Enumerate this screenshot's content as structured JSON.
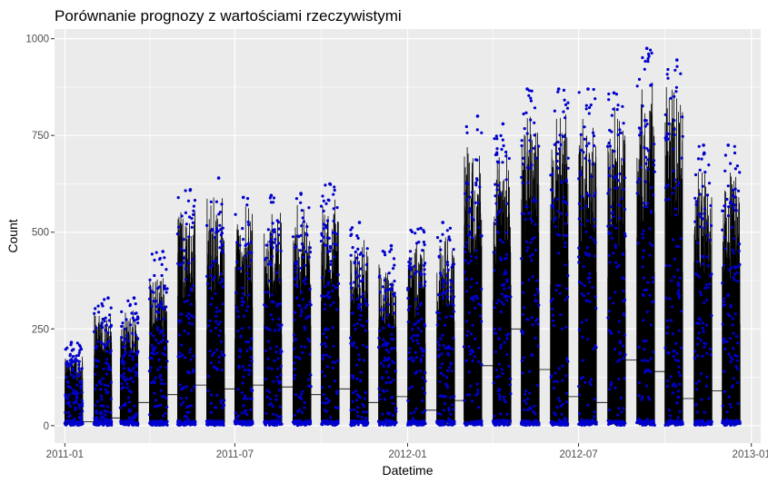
{
  "chart_data": {
    "type": "line",
    "title": "Porównanie prognozy z wartościami rzeczywistymi",
    "xlabel": "Datetime",
    "ylabel": "Count",
    "x_range": [
      "2010-12-21",
      "2013-01-11"
    ],
    "ylim": [
      -45,
      1025
    ],
    "x_ticks": [
      {
        "date": "2011-01-01",
        "label": "2011-01"
      },
      {
        "date": "2011-07-01",
        "label": "2011-07"
      },
      {
        "date": "2012-01-01",
        "label": "2012-01"
      },
      {
        "date": "2012-07-01",
        "label": "2012-07"
      },
      {
        "date": "2013-01-01",
        "label": "2013-01"
      }
    ],
    "y_ticks": [
      0,
      250,
      500,
      750,
      1000
    ],
    "grid": true,
    "background": "#ebebeb",
    "series": [
      {
        "kind": "line",
        "color": "#000000",
        "monthly_blocks": [
          {
            "start": "2011-01-01",
            "end": "2011-01-19",
            "min": 1,
            "peak": 185,
            "bridge": 45
          },
          {
            "start": "2011-02-01",
            "end": "2011-02-19",
            "min": 1,
            "peak": 300,
            "bridge": 10
          },
          {
            "start": "2011-03-01",
            "end": "2011-03-19",
            "min": 1,
            "peak": 300,
            "bridge": 20
          },
          {
            "start": "2011-04-01",
            "end": "2011-04-19",
            "min": 1,
            "peak": 410,
            "bridge": 60
          },
          {
            "start": "2011-05-01",
            "end": "2011-05-19",
            "min": 1,
            "peak": 580,
            "bridge": 80
          },
          {
            "start": "2011-06-01",
            "end": "2011-06-19",
            "min": 1,
            "peak": 590,
            "bridge": 105
          },
          {
            "start": "2011-07-01",
            "end": "2011-07-19",
            "min": 1,
            "peak": 570,
            "bridge": 95
          },
          {
            "start": "2011-08-01",
            "end": "2011-08-19",
            "min": 1,
            "peak": 580,
            "bridge": 105
          },
          {
            "start": "2011-09-01",
            "end": "2011-09-19",
            "min": 1,
            "peak": 570,
            "bridge": 100
          },
          {
            "start": "2011-10-01",
            "end": "2011-10-19",
            "min": 1,
            "peak": 595,
            "bridge": 80
          },
          {
            "start": "2011-11-01",
            "end": "2011-11-19",
            "min": 1,
            "peak": 490,
            "bridge": 95
          },
          {
            "start": "2011-12-01",
            "end": "2011-12-19",
            "min": 1,
            "peak": 430,
            "bridge": 60
          },
          {
            "start": "2012-01-01",
            "end": "2012-01-19",
            "min": 1,
            "peak": 480,
            "bridge": 75
          },
          {
            "start": "2012-02-01",
            "end": "2012-02-19",
            "min": 1,
            "peak": 490,
            "bridge": 40
          },
          {
            "start": "2012-03-01",
            "end": "2012-03-19",
            "min": 1,
            "peak": 740,
            "bridge": 65
          },
          {
            "start": "2012-04-01",
            "end": "2012-04-19",
            "min": 1,
            "peak": 720,
            "bridge": 155
          },
          {
            "start": "2012-05-01",
            "end": "2012-05-19",
            "min": 1,
            "peak": 820,
            "bridge": 250
          },
          {
            "start": "2012-06-01",
            "end": "2012-06-19",
            "min": 1,
            "peak": 820,
            "bridge": 145
          },
          {
            "start": "2012-07-01",
            "end": "2012-07-19",
            "min": 1,
            "peak": 820,
            "bridge": 75
          },
          {
            "start": "2012-08-01",
            "end": "2012-08-19",
            "min": 1,
            "peak": 830,
            "bridge": 60
          },
          {
            "start": "2012-09-01",
            "end": "2012-09-19",
            "min": 1,
            "peak": 900,
            "bridge": 170
          },
          {
            "start": "2012-10-01",
            "end": "2012-10-19",
            "min": 1,
            "peak": 880,
            "bridge": 140
          },
          {
            "start": "2012-11-01",
            "end": "2012-11-19",
            "min": 1,
            "peak": 660,
            "bridge": 70
          },
          {
            "start": "2012-12-01",
            "end": "2012-12-19",
            "min": 1,
            "peak": 660,
            "bridge": 90
          }
        ]
      },
      {
        "kind": "points",
        "color": "#0000cc",
        "monthly_max": [
          215,
          330,
          330,
          450,
          610,
          640,
          590,
          595,
          600,
          625,
          525,
          465,
          510,
          525,
          800,
          780,
          870,
          870,
          870,
          860,
          975,
          945,
          725,
          725
        ]
      }
    ]
  }
}
